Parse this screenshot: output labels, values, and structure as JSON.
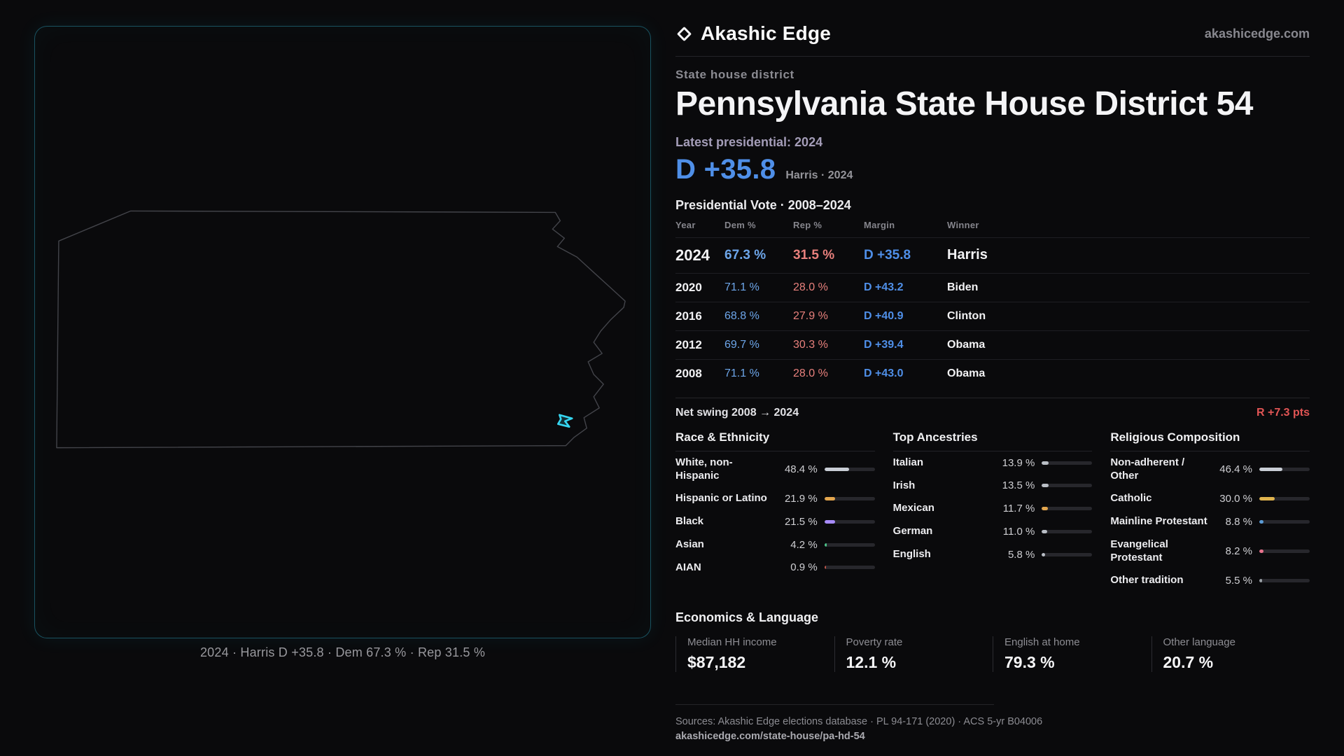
{
  "brand": {
    "name": "Akashic Edge",
    "domain": "akashicedge.com"
  },
  "header": {
    "kicker": "State house district",
    "title": "Pennsylvania State House District 54",
    "latest_label": "Latest presidential: 2024",
    "margin_big": "D +35.8",
    "margin_caption": "Harris · 2024"
  },
  "map": {
    "caption": "2024 · Harris D +35.8 · Dem 67.3 % · Rep 31.5 %"
  },
  "vote_table": {
    "title": "Presidential Vote · 2008–2024",
    "columns": [
      "Year",
      "Dem %",
      "Rep %",
      "Margin",
      "Winner"
    ],
    "rows": [
      {
        "year": "2024",
        "dem": "67.3 %",
        "rep": "31.5 %",
        "margin": "D +35.8",
        "winner": "Harris"
      },
      {
        "year": "2020",
        "dem": "71.1 %",
        "rep": "28.0 %",
        "margin": "D +43.2",
        "winner": "Biden"
      },
      {
        "year": "2016",
        "dem": "68.8 %",
        "rep": "27.9 %",
        "margin": "D +40.9",
        "winner": "Clinton"
      },
      {
        "year": "2012",
        "dem": "69.7 %",
        "rep": "30.3 %",
        "margin": "D +39.4",
        "winner": "Obama"
      },
      {
        "year": "2008",
        "dem": "71.1 %",
        "rep": "28.0 %",
        "margin": "D +43.0",
        "winner": "Obama"
      }
    ],
    "net_swing_label": "Net swing 2008 → 2024",
    "net_swing_value": "R +7.3 pts"
  },
  "demographics": {
    "race": {
      "title": "Race & Ethnicity",
      "rows": [
        {
          "label": "White, non-Hispanic",
          "value": "48.4 %",
          "pct": 48.4,
          "color": "#c9ced6"
        },
        {
          "label": "Hispanic or Latino",
          "value": "21.9 %",
          "pct": 21.9,
          "color": "#e3a64e"
        },
        {
          "label": "Black",
          "value": "21.5 %",
          "pct": 21.5,
          "color": "#a78bfa"
        },
        {
          "label": "Asian",
          "value": "4.2 %",
          "pct": 4.2,
          "color": "#4cc38a"
        },
        {
          "label": "AIAN",
          "value": "0.9 %",
          "pct": 0.9,
          "color": "#c0564a"
        }
      ]
    },
    "ancestries": {
      "title": "Top Ancestries",
      "rows": [
        {
          "label": "Italian",
          "value": "13.9 %",
          "pct": 13.9,
          "color": "#b9bec6"
        },
        {
          "label": "Irish",
          "value": "13.5 %",
          "pct": 13.5,
          "color": "#b9bec6"
        },
        {
          "label": "Mexican",
          "value": "11.7 %",
          "pct": 11.7,
          "color": "#e3a64e"
        },
        {
          "label": "German",
          "value": "11.0 %",
          "pct": 11.0,
          "color": "#b9bec6"
        },
        {
          "label": "English",
          "value": "5.8 %",
          "pct": 5.8,
          "color": "#b9bec6"
        }
      ]
    },
    "religion": {
      "title": "Religious Composition",
      "rows": [
        {
          "label": "Non-adherent / Other",
          "value": "46.4 %",
          "pct": 46.4,
          "color": "#c9ced6"
        },
        {
          "label": "Catholic",
          "value": "30.0 %",
          "pct": 30.0,
          "color": "#e0b44e"
        },
        {
          "label": "Mainline Protestant",
          "value": "8.8 %",
          "pct": 8.8,
          "color": "#5b9bd5"
        },
        {
          "label": "Evangelical Protestant",
          "value": "8.2 %",
          "pct": 8.2,
          "color": "#e8728c"
        },
        {
          "label": "Other tradition",
          "value": "5.5 %",
          "pct": 5.5,
          "color": "#9aa0a6"
        }
      ]
    }
  },
  "economics": {
    "title": "Economics & Language",
    "stats": [
      {
        "label": "Median HH income",
        "value": "$87,182"
      },
      {
        "label": "Poverty rate",
        "value": "12.1 %"
      },
      {
        "label": "English at home",
        "value": "79.3 %"
      },
      {
        "label": "Other language",
        "value": "20.7 %"
      }
    ]
  },
  "footer": {
    "sources": "Sources: Akashic Edge elections database · PL 94-171 (2020) · ACS 5-yr B04006",
    "permalink": "akashicedge.com/state-house/pa-hd-54"
  },
  "colors": {
    "dem": "#4f8fe8",
    "rep": "#e25555",
    "district_highlight": "#36d7f2"
  },
  "chart_data": [
    {
      "type": "table",
      "title": "Presidential Vote · 2008–2024",
      "columns": [
        "Year",
        "Dem %",
        "Rep %",
        "Margin",
        "Winner"
      ],
      "rows": [
        [
          2024,
          67.3,
          31.5,
          "D +35.8",
          "Harris"
        ],
        [
          2020,
          71.1,
          28.0,
          "D +43.2",
          "Biden"
        ],
        [
          2016,
          68.8,
          27.9,
          "D +40.9",
          "Clinton"
        ],
        [
          2012,
          69.7,
          30.3,
          "D +39.4",
          "Obama"
        ],
        [
          2008,
          71.1,
          28.0,
          "D +43.0",
          "Obama"
        ]
      ]
    },
    {
      "type": "bar",
      "title": "Race & Ethnicity",
      "categories": [
        "White, non-Hispanic",
        "Hispanic or Latino",
        "Black",
        "Asian",
        "AIAN"
      ],
      "values": [
        48.4,
        21.9,
        21.5,
        4.2,
        0.9
      ],
      "unit": "%",
      "xlim": [
        0,
        100
      ]
    },
    {
      "type": "bar",
      "title": "Top Ancestries",
      "categories": [
        "Italian",
        "Irish",
        "Mexican",
        "German",
        "English"
      ],
      "values": [
        13.9,
        13.5,
        11.7,
        11.0,
        5.8
      ],
      "unit": "%",
      "xlim": [
        0,
        100
      ]
    },
    {
      "type": "bar",
      "title": "Religious Composition",
      "categories": [
        "Non-adherent / Other",
        "Catholic",
        "Mainline Protestant",
        "Evangelical Protestant",
        "Other tradition"
      ],
      "values": [
        46.4,
        30.0,
        8.8,
        8.2,
        5.5
      ],
      "unit": "%",
      "xlim": [
        0,
        100
      ]
    }
  ]
}
